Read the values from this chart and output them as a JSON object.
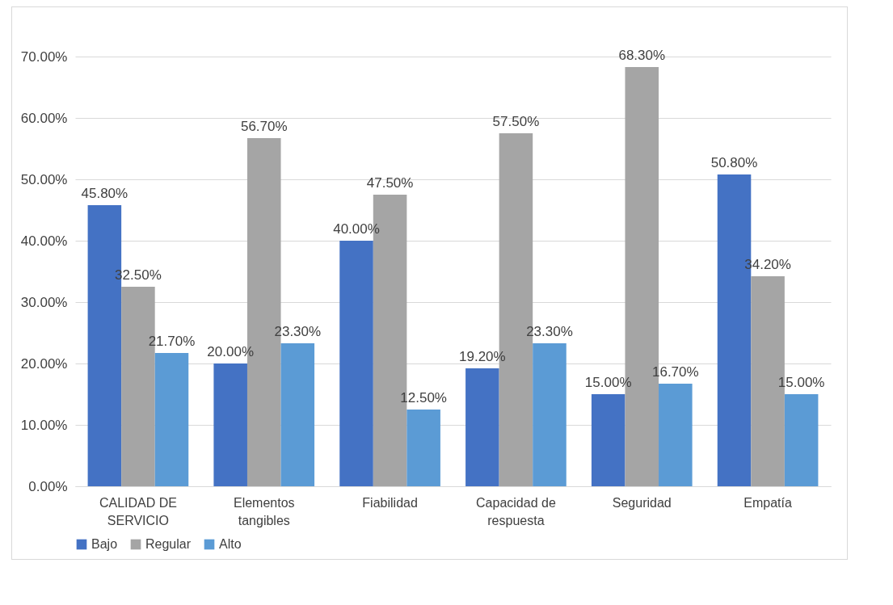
{
  "chart_data": {
    "type": "bar",
    "categories": [
      "CALIDAD DE SERVICIO",
      "Elementos tangibles",
      "Fiabilidad",
      "Capacidad de respuesta",
      "Seguridad",
      "Empatía"
    ],
    "series": [
      {
        "name": "Bajo",
        "color": "#4472c4",
        "values": [
          45.8,
          20.0,
          40.0,
          19.2,
          15.0,
          50.8
        ],
        "value_labels": [
          "45.80%",
          "20.00%",
          "40.00%",
          "19.20%",
          "15.00%",
          "50.80%"
        ]
      },
      {
        "name": "Regular",
        "color": "#a5a5a5",
        "values": [
          32.5,
          56.7,
          47.5,
          57.5,
          68.3,
          34.2
        ],
        "value_labels": [
          "32.50%",
          "56.70%",
          "47.50%",
          "57.50%",
          "68.30%",
          "34.20%"
        ]
      },
      {
        "name": "Alto",
        "color": "#5b9bd5",
        "values": [
          21.7,
          23.3,
          12.5,
          23.3,
          16.7,
          15.0
        ],
        "value_labels": [
          "21.70%",
          "23.30%",
          "12.50%",
          "23.30%",
          "16.70%",
          "15.00%"
        ]
      }
    ],
    "ylim": [
      0,
      70
    ],
    "yticks": [
      {
        "value": 0,
        "label": "0.00%"
      },
      {
        "value": 10,
        "label": "10.00%"
      },
      {
        "value": 20,
        "label": "20.00%"
      },
      {
        "value": 30,
        "label": "30.00%"
      },
      {
        "value": 40,
        "label": "40.00%"
      },
      {
        "value": 50,
        "label": "50.00%"
      },
      {
        "value": 60,
        "label": "60.00%"
      },
      {
        "value": 70,
        "label": "70.00%"
      }
    ],
    "grid": "y",
    "legend": "bottom"
  }
}
